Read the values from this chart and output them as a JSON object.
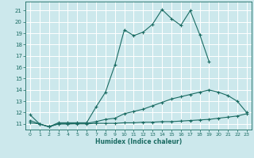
{
  "xlabel": "Humidex (Indice chaleur)",
  "bg_color": "#cce8ec",
  "grid_color": "#b8d8dc",
  "line_color": "#1a6b62",
  "xlim": [
    -0.5,
    23.5
  ],
  "ylim": [
    10.5,
    21.8
  ],
  "yticks": [
    11,
    12,
    13,
    14,
    15,
    16,
    17,
    18,
    19,
    20,
    21
  ],
  "xticks": [
    0,
    1,
    2,
    3,
    4,
    5,
    6,
    7,
    8,
    9,
    10,
    11,
    12,
    13,
    14,
    15,
    16,
    17,
    18,
    19,
    20,
    21,
    22,
    23
  ],
  "series": {
    "max": {
      "x": [
        0,
        1,
        2,
        3,
        4,
        5,
        6,
        7,
        8,
        9,
        10,
        11,
        12,
        13,
        14,
        15,
        16,
        17,
        18,
        19
      ],
      "y": [
        11.8,
        11.0,
        10.75,
        11.1,
        11.1,
        11.1,
        11.1,
        12.5,
        13.8,
        16.2,
        19.3,
        18.8,
        19.1,
        19.8,
        21.1,
        20.3,
        19.7,
        21.0,
        18.9,
        16.5
      ]
    },
    "avg": {
      "x": [
        0,
        1,
        2,
        3,
        4,
        5,
        6,
        7,
        8,
        9,
        10,
        11,
        12,
        13,
        14,
        15,
        16,
        17,
        18,
        19,
        20,
        21,
        22,
        23
      ],
      "y": [
        11.3,
        11.0,
        10.75,
        11.0,
        11.0,
        11.05,
        11.05,
        11.2,
        11.4,
        11.5,
        11.9,
        12.1,
        12.3,
        12.6,
        12.9,
        13.2,
        13.4,
        13.6,
        13.8,
        14.0,
        13.8,
        13.5,
        13.0,
        12.0
      ]
    },
    "min": {
      "x": [
        0,
        1,
        2,
        3,
        4,
        5,
        6,
        7,
        8,
        9,
        10,
        11,
        12,
        13,
        14,
        15,
        16,
        17,
        18,
        19,
        20,
        21,
        22,
        23
      ],
      "y": [
        11.1,
        11.0,
        10.75,
        11.0,
        11.0,
        11.0,
        11.0,
        11.05,
        11.05,
        11.05,
        11.1,
        11.1,
        11.15,
        11.15,
        11.2,
        11.2,
        11.25,
        11.3,
        11.35,
        11.4,
        11.5,
        11.6,
        11.7,
        11.9
      ]
    }
  }
}
